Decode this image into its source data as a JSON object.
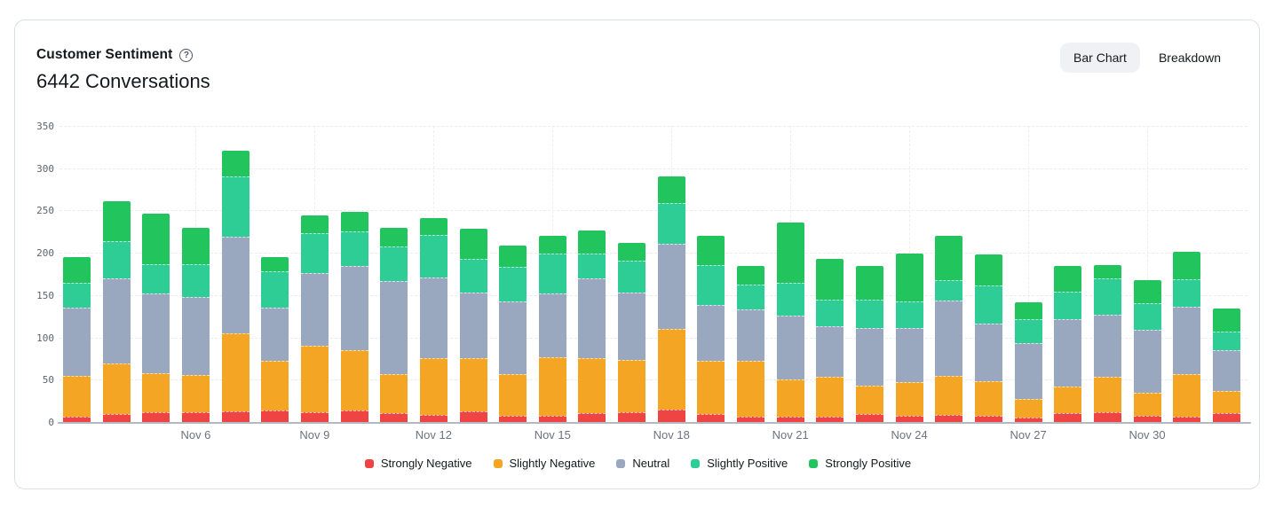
{
  "header": {
    "title": "Customer Sentiment",
    "subtitle": "6442 Conversations"
  },
  "toolbar": {
    "bar_chart_label": "Bar Chart",
    "breakdown_label": "Breakdown",
    "active": "Bar Chart"
  },
  "chart_data": {
    "type": "bar",
    "stacked": true,
    "title": "Customer Sentiment",
    "total_conversations": 6442,
    "categories": [
      "Nov 3",
      "Nov 4",
      "Nov 5",
      "Nov 6",
      "Nov 7",
      "Nov 8",
      "Nov 9",
      "Nov 10",
      "Nov 11",
      "Nov 12",
      "Nov 13",
      "Nov 14",
      "Nov 15",
      "Nov 16",
      "Nov 17",
      "Nov 18",
      "Nov 19",
      "Nov 20",
      "Nov 21",
      "Nov 22",
      "Nov 23",
      "Nov 24",
      "Nov 25",
      "Nov 26",
      "Nov 27",
      "Nov 28",
      "Nov 29",
      "Nov 30",
      "Dec 1",
      "Dec 2"
    ],
    "x_tick_label_indices": [
      3,
      6,
      9,
      12,
      15,
      18,
      21,
      24,
      27
    ],
    "x_tick_labels": [
      "Nov 6",
      "Nov 9",
      "Nov 12",
      "Nov 15",
      "Nov 18",
      "Nov 21",
      "Nov 24",
      "Nov 27",
      "Nov 30"
    ],
    "y_ticks": [
      0,
      50,
      100,
      150,
      200,
      250,
      300,
      350
    ],
    "ylim": [
      0,
      350
    ],
    "grid": true,
    "legend_position": "bottom",
    "series": [
      {
        "name": "Strongly Negative",
        "color": "#ef4444",
        "values": [
          6,
          9,
          11,
          11,
          13,
          14,
          12,
          14,
          10,
          8,
          13,
          7,
          7,
          10,
          11,
          15,
          9,
          6,
          6,
          6,
          9,
          7,
          8,
          7,
          5,
          10,
          12,
          7,
          6,
          10
        ]
      },
      {
        "name": "Slightly Negative",
        "color": "#f5a524",
        "values": [
          48,
          60,
          47,
          44,
          92,
          58,
          78,
          71,
          47,
          67,
          62,
          50,
          69,
          65,
          62,
          95,
          63,
          66,
          44,
          47,
          34,
          40,
          46,
          41,
          22,
          32,
          41,
          28,
          51,
          27
        ]
      },
      {
        "name": "Neutral",
        "color": "#99a7bf",
        "values": [
          81,
          101,
          94,
          93,
          114,
          63,
          86,
          99,
          110,
          96,
          78,
          85,
          76,
          95,
          80,
          101,
          66,
          61,
          76,
          60,
          68,
          64,
          90,
          68,
          66,
          80,
          74,
          74,
          79,
          48
        ]
      },
      {
        "name": "Slightly Positive",
        "color": "#2ecd96",
        "values": [
          30,
          44,
          34,
          38,
          71,
          43,
          47,
          41,
          40,
          50,
          40,
          41,
          47,
          29,
          38,
          48,
          47,
          29,
          38,
          32,
          34,
          32,
          24,
          45,
          29,
          32,
          43,
          31,
          33,
          22
        ]
      },
      {
        "name": "Strongly Positive",
        "color": "#21c45d",
        "values": [
          30,
          47,
          60,
          43,
          31,
          17,
          21,
          23,
          22,
          20,
          35,
          26,
          21,
          27,
          21,
          31,
          35,
          22,
          72,
          48,
          39,
          56,
          52,
          37,
          19,
          30,
          16,
          28,
          32,
          27
        ]
      }
    ]
  }
}
